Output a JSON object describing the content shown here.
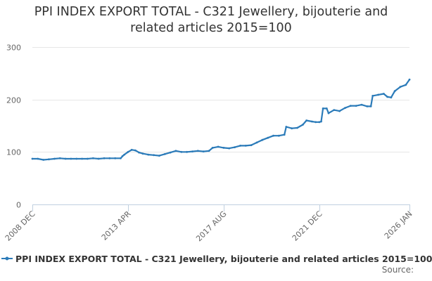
{
  "chart_data": {
    "type": "line",
    "title_lines": [
      "PPI INDEX EXPORT TOTAL - C321 Jewellery, bijouterie and",
      "related articles 2015=100"
    ],
    "xlabel": "",
    "ylabel": "",
    "ylim": [
      0,
      300
    ],
    "yticks": [
      "0",
      "100",
      "200",
      "300"
    ],
    "xlim": [
      "2008-12",
      "2026-01"
    ],
    "xticks": [
      "2008 DEC",
      "2013 APR",
      "2017 AUG",
      "2021 DEC",
      "2026 JAN"
    ],
    "grid": "horizontal",
    "legend_position": "bottom",
    "colors": {
      "series": "#2b7bb9",
      "grid": "#e6e6e6",
      "axis": "#c0d0e0"
    },
    "series": [
      {
        "name": "PPI INDEX EXPORT TOTAL - C321 Jewellery, bijouterie and related articles 2015=100",
        "points": [
          [
            "2008-12",
            87
          ],
          [
            "2009-03",
            87
          ],
          [
            "2009-06",
            85
          ],
          [
            "2009-09",
            86
          ],
          [
            "2009-12",
            87
          ],
          [
            "2010-03",
            88
          ],
          [
            "2010-06",
            87
          ],
          [
            "2010-09",
            87
          ],
          [
            "2010-12",
            87
          ],
          [
            "2011-03",
            87
          ],
          [
            "2011-06",
            87
          ],
          [
            "2011-09",
            88
          ],
          [
            "2011-12",
            87
          ],
          [
            "2012-03",
            88
          ],
          [
            "2012-06",
            88
          ],
          [
            "2012-09",
            88
          ],
          [
            "2012-12",
            88
          ],
          [
            "2013-01",
            92
          ],
          [
            "2013-02",
            95
          ],
          [
            "2013-04",
            100
          ],
          [
            "2013-06",
            104
          ],
          [
            "2013-08",
            103
          ],
          [
            "2013-10",
            99
          ],
          [
            "2013-12",
            97
          ],
          [
            "2014-03",
            95
          ],
          [
            "2014-06",
            94
          ],
          [
            "2014-09",
            93
          ],
          [
            "2014-12",
            96
          ],
          [
            "2015-03",
            99
          ],
          [
            "2015-06",
            102
          ],
          [
            "2015-09",
            100
          ],
          [
            "2015-12",
            100
          ],
          [
            "2016-03",
            101
          ],
          [
            "2016-06",
            102
          ],
          [
            "2016-09",
            101
          ],
          [
            "2016-12",
            102
          ],
          [
            "2017-02",
            108
          ],
          [
            "2017-05",
            110
          ],
          [
            "2017-08",
            108
          ],
          [
            "2017-11",
            107
          ],
          [
            "2018-02",
            109
          ],
          [
            "2018-05",
            112
          ],
          [
            "2018-08",
            112
          ],
          [
            "2018-11",
            113
          ],
          [
            "2019-02",
            118
          ],
          [
            "2019-05",
            123
          ],
          [
            "2019-08",
            127
          ],
          [
            "2019-11",
            131
          ],
          [
            "2020-02",
            131
          ],
          [
            "2020-05",
            133
          ],
          [
            "2020-06",
            148
          ],
          [
            "2020-09",
            145
          ],
          [
            "2020-12",
            146
          ],
          [
            "2021-03",
            152
          ],
          [
            "2021-05",
            160
          ],
          [
            "2021-08",
            158
          ],
          [
            "2021-10",
            157
          ],
          [
            "2021-12",
            157
          ],
          [
            "2022-01",
            158
          ],
          [
            "2022-02",
            183
          ],
          [
            "2022-04",
            183
          ],
          [
            "2022-05",
            174
          ],
          [
            "2022-08",
            180
          ],
          [
            "2022-11",
            178
          ],
          [
            "2023-02",
            184
          ],
          [
            "2023-05",
            188
          ],
          [
            "2023-08",
            188
          ],
          [
            "2023-11",
            190
          ],
          [
            "2024-02",
            187
          ],
          [
            "2024-04",
            187
          ],
          [
            "2024-05",
            207
          ],
          [
            "2024-08",
            209
          ],
          [
            "2024-11",
            211
          ],
          [
            "2025-01",
            205
          ],
          [
            "2025-03",
            204
          ],
          [
            "2025-05",
            216
          ],
          [
            "2025-08",
            224
          ],
          [
            "2025-11",
            228
          ],
          [
            "2026-01",
            238
          ]
        ]
      }
    ]
  },
  "footer": {
    "source_label": "Source:"
  }
}
